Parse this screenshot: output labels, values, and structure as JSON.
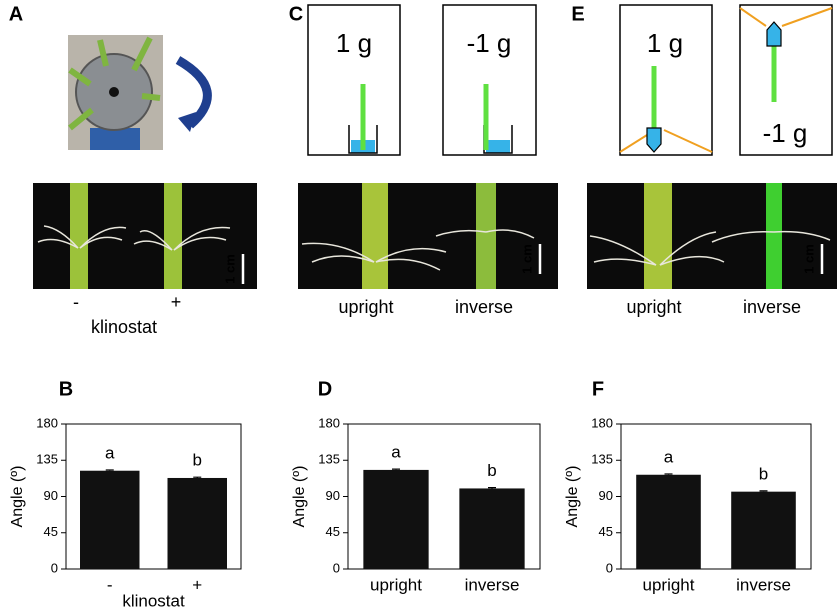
{
  "panel_labels": [
    "A",
    "B",
    "C",
    "D",
    "E",
    "F"
  ],
  "panels": {
    "A": {
      "conditions": [
        "-",
        "+"
      ],
      "condition_title": "klinostat",
      "scale": "1 cm"
    },
    "C": {
      "gravity": [
        "1 g",
        "-1 g"
      ],
      "conditions": [
        "upright",
        "inverse"
      ],
      "scale": "1 cm"
    },
    "E": {
      "gravity": [
        "1 g",
        "-1 g"
      ],
      "conditions": [
        "upright",
        "inverse"
      ],
      "scale": "1 cm"
    }
  },
  "chart_data": [
    {
      "type": "bar",
      "y_label": "Angle (º)",
      "x_label": "klinostat",
      "categories": [
        "-",
        "+"
      ],
      "values": [
        122,
        113
      ],
      "errors": [
        1,
        1
      ],
      "annotations": [
        "a",
        "b"
      ],
      "color": "#111111",
      "ylim": [
        0,
        180
      ],
      "yticks": [
        0,
        45,
        90,
        135,
        180
      ]
    },
    {
      "type": "bar",
      "y_label": "Angle (º)",
      "categories": [
        "upright",
        "inverse"
      ],
      "values": [
        123,
        100
      ],
      "errors": [
        1,
        1
      ],
      "annotations": [
        "a",
        "b"
      ],
      "color": "#111111",
      "ylim": [
        0,
        180
      ],
      "yticks": [
        0,
        45,
        90,
        135,
        180
      ]
    },
    {
      "type": "bar",
      "y_label": "Angle (º)",
      "categories": [
        "upright",
        "inverse"
      ],
      "values": [
        117,
        96
      ],
      "errors": [
        1,
        1
      ],
      "annotations": [
        "a",
        "b"
      ],
      "color": "#111111",
      "ylim": [
        0,
        180
      ],
      "yticks": [
        0,
        45,
        90,
        135,
        180
      ]
    }
  ]
}
